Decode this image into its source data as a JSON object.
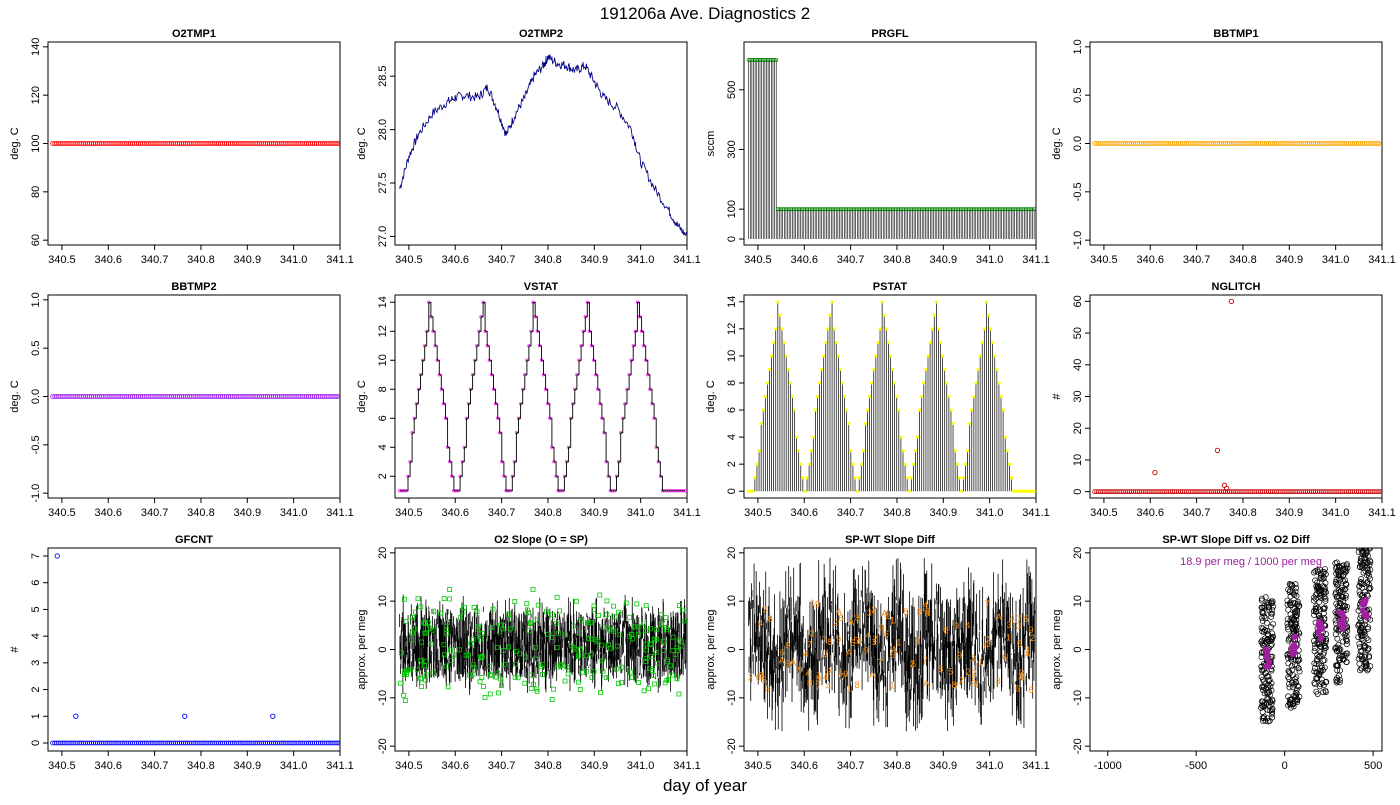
{
  "page": {
    "title": "191206a   Ave. Diagnostics 2",
    "xlabel": "day of year"
  },
  "chart_data": [
    {
      "type": "scatter",
      "title": "O2TMP1",
      "ylabel": "deg. C",
      "xlim": [
        340.47,
        341.1
      ],
      "ylim": [
        58,
        142
      ],
      "xticks": [
        340.5,
        340.6,
        340.7,
        340.8,
        340.9,
        341.0,
        341.1
      ],
      "xtick_labels": [
        "340.5",
        "340.6",
        "340.7",
        "340.8",
        "340.9",
        "341.0",
        "341.1"
      ],
      "yticks": [
        60,
        80,
        100,
        120,
        140
      ],
      "ytick_labels": [
        "60",
        "80",
        "100",
        "120",
        "140"
      ],
      "series": [
        {
          "kind": "constant",
          "value": 100,
          "color": "#ff0000"
        }
      ]
    },
    {
      "type": "line",
      "title": "O2TMP2",
      "ylabel": "deg. C",
      "xlim": [
        340.47,
        341.1
      ],
      "ylim": [
        26.92,
        28.82
      ],
      "xticks": [
        340.5,
        340.6,
        340.7,
        340.8,
        340.9,
        341.0,
        341.1
      ],
      "xtick_labels": [
        "340.5",
        "340.6",
        "340.7",
        "340.8",
        "340.9",
        "341.0",
        "341.1"
      ],
      "yticks": [
        27.0,
        27.5,
        28.0,
        28.5
      ],
      "ytick_labels": [
        "27.0",
        "27.5",
        "28.0",
        "28.5"
      ],
      "series": [
        {
          "kind": "line",
          "color": "#0000ff",
          "x": [
            340.48,
            340.5,
            340.52,
            340.55,
            340.58,
            340.6,
            340.62,
            340.65,
            340.67,
            340.69,
            340.71,
            340.73,
            340.75,
            340.77,
            340.79,
            340.8,
            340.82,
            340.84,
            340.86,
            340.88,
            340.9,
            340.92,
            340.95,
            340.98,
            341.0,
            341.03,
            341.06,
            341.08,
            341.1
          ],
          "y": [
            27.45,
            27.75,
            27.95,
            28.15,
            28.25,
            28.3,
            28.32,
            28.3,
            28.4,
            28.2,
            27.95,
            28.15,
            28.3,
            28.5,
            28.6,
            28.68,
            28.62,
            28.6,
            28.55,
            28.6,
            28.45,
            28.3,
            28.2,
            28.0,
            27.7,
            27.45,
            27.25,
            27.1,
            27.0
          ]
        }
      ]
    },
    {
      "type": "line",
      "title": "PRGFL",
      "ylabel": "sccm",
      "xlim": [
        340.47,
        341.1
      ],
      "ylim": [
        -20,
        660
      ],
      "xticks": [
        340.5,
        340.6,
        340.7,
        340.8,
        340.9,
        341.0,
        341.1
      ],
      "xtick_labels": [
        "340.5",
        "340.6",
        "340.7",
        "340.8",
        "340.9",
        "341.0",
        "341.1"
      ],
      "yticks": [
        0,
        100,
        300,
        500
      ],
      "ytick_labels": [
        "0",
        "100",
        "300",
        "500"
      ],
      "series": [
        {
          "kind": "prgfl",
          "high1": 600,
          "high2": 100,
          "switch": 340.54,
          "color": "#008000"
        }
      ]
    },
    {
      "type": "scatter",
      "title": "BBTMP1",
      "ylabel": "deg. C",
      "xlim": [
        340.47,
        341.1
      ],
      "ylim": [
        -1.05,
        1.05
      ],
      "xticks": [
        340.5,
        340.6,
        340.7,
        340.8,
        340.9,
        341.0,
        341.1
      ],
      "xtick_labels": [
        "340.5",
        "340.6",
        "340.7",
        "340.8",
        "340.9",
        "341.0",
        "341.1"
      ],
      "yticks": [
        -1.0,
        -0.5,
        0.0,
        0.5,
        1.0
      ],
      "ytick_labels": [
        "-1.0",
        "-0.5",
        "0.0",
        "0.5",
        "1.0"
      ],
      "series": [
        {
          "kind": "constant",
          "value": 0,
          "color": "#ffa500"
        }
      ]
    },
    {
      "type": "scatter",
      "title": "BBTMP2",
      "ylabel": "deg. C",
      "xlim": [
        340.47,
        341.1
      ],
      "ylim": [
        -1.05,
        1.05
      ],
      "xticks": [
        340.5,
        340.6,
        340.7,
        340.8,
        340.9,
        341.0,
        341.1
      ],
      "xtick_labels": [
        "340.5",
        "340.6",
        "340.7",
        "340.8",
        "340.9",
        "341.0",
        "341.1"
      ],
      "yticks": [
        -1.0,
        -0.5,
        0.0,
        0.5,
        1.0
      ],
      "ytick_labels": [
        "-1.0",
        "-0.5",
        "0.0",
        "0.5",
        "1.0"
      ],
      "series": [
        {
          "kind": "constant",
          "value": 0,
          "color": "#a020f0"
        }
      ]
    },
    {
      "type": "line",
      "title": "VSTAT",
      "ylabel": "deg. C",
      "xlim": [
        340.47,
        341.1
      ],
      "ylim": [
        0.5,
        14.5
      ],
      "xticks": [
        340.5,
        340.6,
        340.7,
        340.8,
        340.9,
        341.0,
        341.1
      ],
      "xtick_labels": [
        "340.5",
        "340.6",
        "340.7",
        "340.8",
        "340.9",
        "341.0",
        "341.1"
      ],
      "yticks": [
        2,
        4,
        6,
        8,
        10,
        12,
        14
      ],
      "ytick_labels": [
        "2",
        "4",
        "6",
        "8",
        "10",
        "12",
        "14"
      ],
      "series": [
        {
          "kind": "stair",
          "start": 340.48,
          "period": 0.1125,
          "peaks": [
            340.545,
            340.658,
            340.77,
            340.883,
            340.995
          ],
          "color": "#ff00ff",
          "mode": "vstat"
        }
      ]
    },
    {
      "type": "line",
      "title": "PSTAT",
      "ylabel": "deg. C",
      "xlim": [
        340.47,
        341.1
      ],
      "ylim": [
        -0.5,
        14.5
      ],
      "xticks": [
        340.5,
        340.6,
        340.7,
        340.8,
        340.9,
        341.0,
        341.1
      ],
      "xtick_labels": [
        "340.5",
        "340.6",
        "340.7",
        "340.8",
        "340.9",
        "341.0",
        "341.1"
      ],
      "yticks": [
        0,
        2,
        4,
        6,
        8,
        10,
        12,
        14
      ],
      "ytick_labels": [
        "0",
        "2",
        "4",
        "6",
        "8",
        "10",
        "12",
        "14"
      ],
      "series": [
        {
          "kind": "stair",
          "start": 340.48,
          "period": 0.1125,
          "peaks": [
            340.545,
            340.658,
            340.77,
            340.883,
            340.995
          ],
          "color": "#ffff00",
          "mode": "pstat"
        }
      ]
    },
    {
      "type": "scatter",
      "title": "NGLITCH",
      "ylabel": "#",
      "xlim": [
        340.47,
        341.1
      ],
      "ylim": [
        -2,
        62
      ],
      "xticks": [
        340.5,
        340.6,
        340.7,
        340.8,
        340.9,
        341.0,
        341.1
      ],
      "xtick_labels": [
        "340.5",
        "340.6",
        "340.7",
        "340.8",
        "340.9",
        "341.0",
        "341.1"
      ],
      "yticks": [
        0,
        10,
        20,
        30,
        40,
        50,
        60
      ],
      "ytick_labels": [
        "0",
        "10",
        "20",
        "30",
        "40",
        "50",
        "60"
      ],
      "series": [
        {
          "kind": "constant_with_spikes",
          "value": 0,
          "color": "#cc0000",
          "spikes": [
            {
              "x": 340.61,
              "y": 6
            },
            {
              "x": 340.745,
              "y": 13
            },
            {
              "x": 340.76,
              "y": 2
            },
            {
              "x": 340.765,
              "y": 1
            },
            {
              "x": 340.775,
              "y": 60
            }
          ]
        }
      ]
    },
    {
      "type": "scatter",
      "title": "GFCNT",
      "ylabel": "#",
      "xlim": [
        340.47,
        341.1
      ],
      "ylim": [
        -0.3,
        7.3
      ],
      "xticks": [
        340.5,
        340.6,
        340.7,
        340.8,
        340.9,
        341.0,
        341.1
      ],
      "xtick_labels": [
        "340.5",
        "340.6",
        "340.7",
        "340.8",
        "340.9",
        "341.0",
        "341.1"
      ],
      "yticks": [
        0,
        1,
        2,
        3,
        4,
        5,
        6,
        7
      ],
      "ytick_labels": [
        "0",
        "1",
        "2",
        "3",
        "4",
        "5",
        "6",
        "7"
      ],
      "series": [
        {
          "kind": "constant_with_spikes",
          "value": 0,
          "color": "#0000ff",
          "spikes": [
            {
              "x": 340.49,
              "y": 7
            },
            {
              "x": 340.53,
              "y": 1
            },
            {
              "x": 340.765,
              "y": 1
            },
            {
              "x": 340.955,
              "y": 1
            }
          ]
        }
      ]
    },
    {
      "type": "line",
      "title": "O2 Slope (O = SP)",
      "ylabel": "approx. per meg",
      "xlim": [
        340.47,
        341.1
      ],
      "ylim": [
        -21,
        21
      ],
      "xticks": [
        340.5,
        340.6,
        340.7,
        340.8,
        340.9,
        341.0,
        341.1
      ],
      "xtick_labels": [
        "340.5",
        "340.6",
        "340.7",
        "340.8",
        "340.9",
        "341.0",
        "341.1"
      ],
      "yticks": [
        -20,
        -10,
        0,
        10,
        20
      ],
      "ytick_labels": [
        "-20",
        "-10",
        "0",
        "10",
        "20"
      ],
      "series": [
        {
          "kind": "noise",
          "center": 1,
          "spread": 9,
          "color": "#00cc00"
        }
      ]
    },
    {
      "type": "line",
      "title": "SP-WT Slope Diff",
      "ylabel": "approx. per meg",
      "xlim": [
        340.47,
        341.1
      ],
      "ylim": [
        -21,
        21
      ],
      "xticks": [
        340.5,
        340.6,
        340.7,
        340.8,
        340.9,
        341.0,
        341.1
      ],
      "xtick_labels": [
        "340.5",
        "340.6",
        "340.7",
        "340.8",
        "340.9",
        "341.0",
        "341.1"
      ],
      "yticks": [
        -20,
        -10,
        0,
        10,
        20
      ],
      "ytick_labels": [
        "-20",
        "-10",
        "0",
        "10",
        "20"
      ],
      "series": [
        {
          "kind": "noise_bands",
          "color": "#ff8c00",
          "labels": [
            "5",
            "4",
            "3",
            "6",
            "7",
            "8",
            "9",
            "A",
            "1",
            "2"
          ]
        }
      ]
    },
    {
      "type": "scatter",
      "title": "SP-WT Slope Diff vs. O2 Diff",
      "ylabel": "approx. per meg",
      "xlim": [
        -1100,
        550
      ],
      "ylim": [
        -21,
        21
      ],
      "xticks": [
        -1000,
        -500,
        0,
        500
      ],
      "xtick_labels": [
        "-1000",
        "-500",
        "0",
        "500"
      ],
      "yticks": [
        -20,
        -10,
        0,
        10,
        20
      ],
      "ytick_labels": [
        "-20",
        "-10",
        "0",
        "10",
        "20"
      ],
      "annotation": "18.9 per meg / 1000 per meg",
      "annotation_color": "#a020a0",
      "series": [
        {
          "kind": "clusters",
          "color": "#000000",
          "accent": "#a020a0",
          "centers": [
            -100,
            50,
            200,
            320,
            450
          ]
        }
      ]
    }
  ]
}
